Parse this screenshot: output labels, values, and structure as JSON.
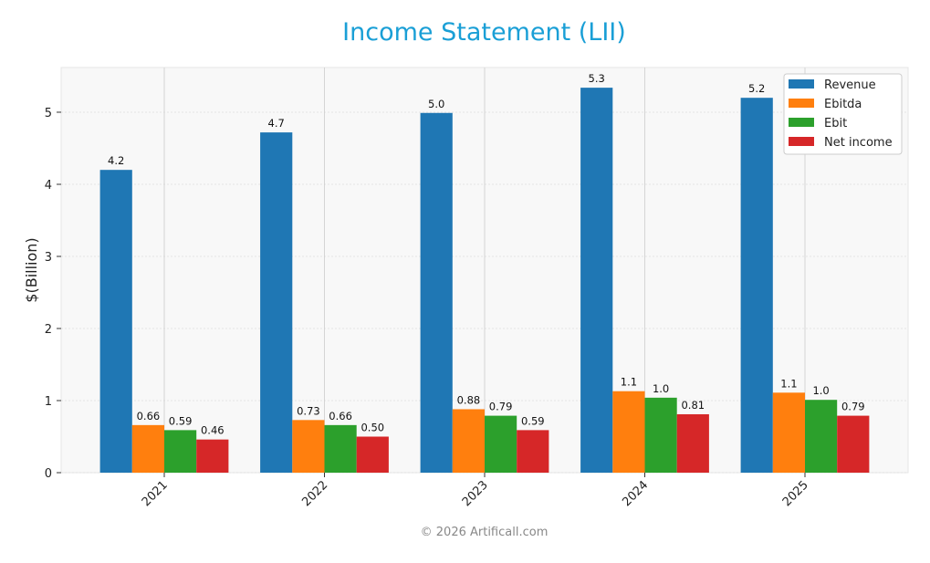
{
  "chart_data": {
    "type": "bar",
    "title": "Income Statement (LII)",
    "xlabel": "",
    "ylabel": "$(Billion)",
    "ylim": [
      0,
      5.62
    ],
    "yticks": [
      0,
      1,
      2,
      3,
      4,
      5
    ],
    "grid": true,
    "legend_position": "top-right",
    "categories": [
      "2021",
      "2022",
      "2023",
      "2024",
      "2025"
    ],
    "series": [
      {
        "name": "Revenue",
        "color": "#1f77b4",
        "values": [
          4.2,
          4.72,
          4.99,
          5.34,
          5.2
        ],
        "labels": [
          "4.2",
          "4.7",
          "5.0",
          "5.3",
          "5.2"
        ]
      },
      {
        "name": "Ebitda",
        "color": "#ff7f0e",
        "values": [
          0.66,
          0.73,
          0.88,
          1.13,
          1.11
        ],
        "labels": [
          "0.66",
          "0.73",
          "0.88",
          "1.1",
          "1.1"
        ]
      },
      {
        "name": "Ebit",
        "color": "#2ca02c",
        "values": [
          0.59,
          0.66,
          0.79,
          1.04,
          1.01
        ],
        "labels": [
          "0.59",
          "0.66",
          "0.79",
          "1.0",
          "1.0"
        ]
      },
      {
        "name": "Net income",
        "color": "#d62728",
        "values": [
          0.46,
          0.5,
          0.59,
          0.81,
          0.79
        ],
        "labels": [
          "0.46",
          "0.50",
          "0.59",
          "0.81",
          "0.79"
        ]
      }
    ]
  },
  "footer": "© 2026 Artificall.com"
}
